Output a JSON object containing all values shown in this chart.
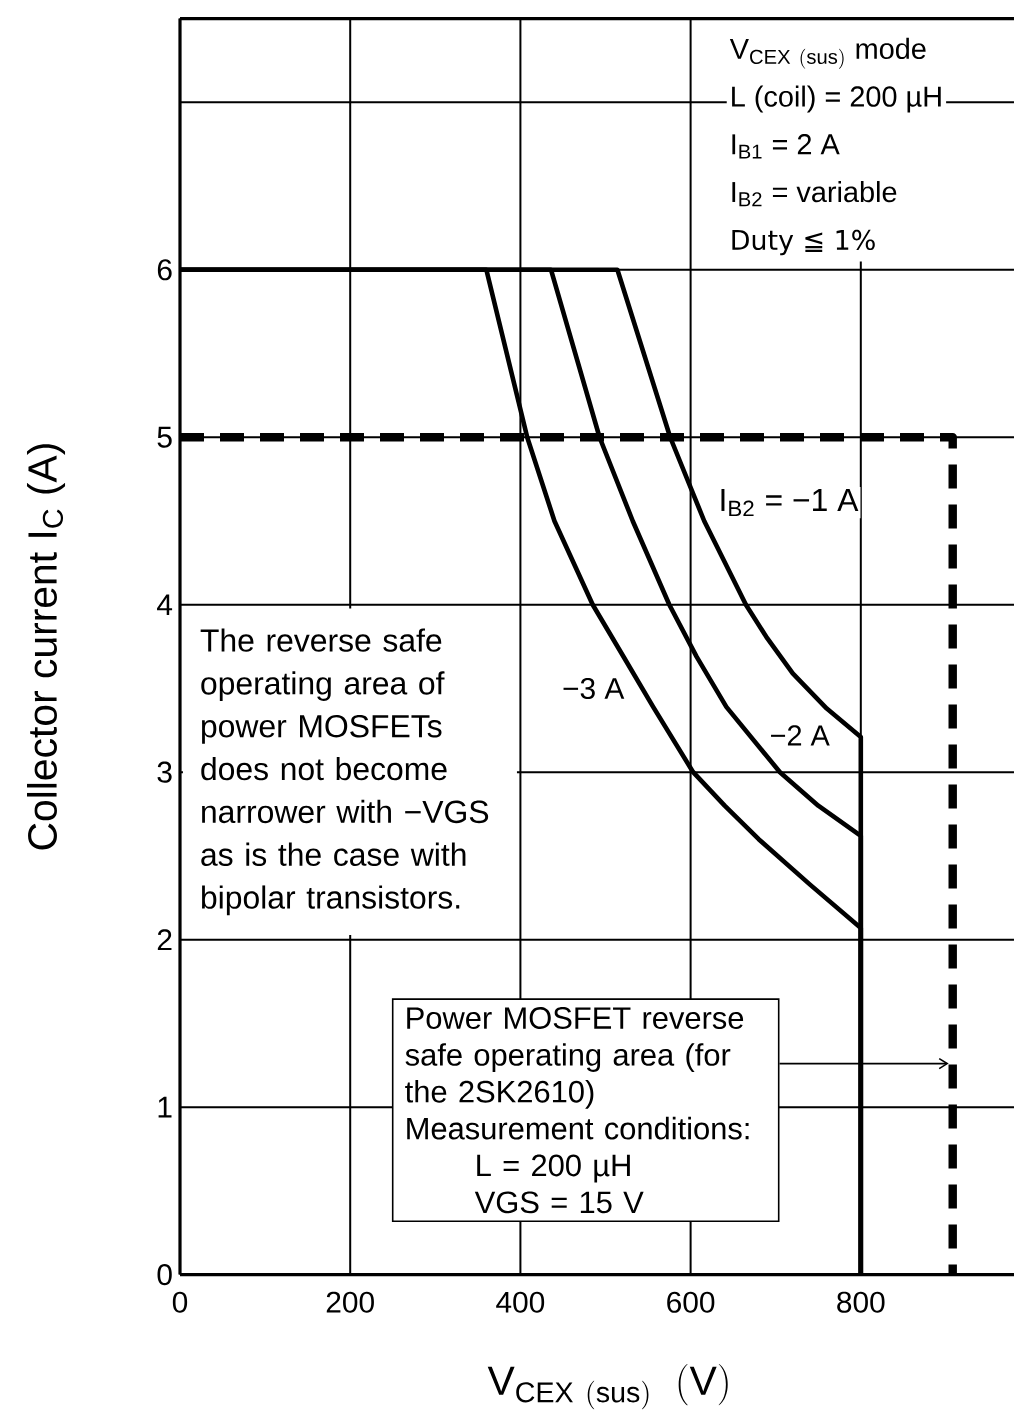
{
  "chart_data": {
    "type": "line",
    "xlabel": "\\mathrm{V}_{\\mathrm{CEX\\ (sus)}}\\ \\ \\mathrm{(V)}",
    "ylabel": "Collector current I$_{C}$ (A)",
    "xlim": [
      0,
      980
    ],
    "ylim": [
      0,
      7.5
    ],
    "xticks": [
      0,
      200,
      400,
      600,
      800
    ],
    "yticks": [
      0,
      1,
      2,
      3,
      4,
      5,
      6,
      {
        "value": 7,
        "label": null
      }
    ],
    "grid": true,
    "legend": false,
    "line_style": "solid",
    "series": [
      {
        "name": "I$_{B2}$ = −1 A",
        "color": "#000000",
        "x": [
          0,
          514,
          576,
          616,
          665,
          690,
          720,
          760,
          800,
          800
        ],
        "values": [
          6,
          6,
          5,
          4.5,
          4,
          3.8,
          3.59,
          3.38,
          3.21,
          0
        ]
      },
      {
        "name": "−2 A",
        "color": "#000000",
        "x": [
          0,
          436,
          493,
          532,
          575,
          607,
          642,
          705,
          750,
          800,
          800
        ],
        "values": [
          6,
          6,
          5,
          4.5,
          4,
          3.69,
          3.39,
          3,
          2.8,
          2.62,
          0
        ]
      },
      {
        "name": "−3 A",
        "color": "#000000",
        "x": [
          0,
          360,
          408,
          440,
          485,
          520,
          556,
          603,
          640,
          680,
          740,
          800,
          800
        ],
        "values": [
          6,
          6,
          5,
          4.5,
          4,
          3.7,
          3.39,
          3,
          2.8,
          2.6,
          2.33,
          2.07,
          0
        ]
      },
      {
        "color": "#000000",
        "line_style": "dashed",
        "x": [
          0,
          908,
          908
        ],
        "values": [
          5,
          5,
          0
        ]
      }
    ],
    "annotations": [
      "\\mathrm{V}_{\\mathrm{CEX\\ (sus)}}\\ \\mathrm{mode}",
      "L (coil) = 200 µH",
      "I$_{B1}$ = 2 A",
      "I$_{B2}$ = variable",
      "Duty ≦ 1%",
      "The reverse safe operating area of power MOSFETs does not become narrower with −VGS as is the case with bipolar transistors.",
      {
        "text": "Power MOSFET reverse safe operating area (for the 2SK2610)",
        "x": 908,
        "y": 1.26
      },
      "Measurement conditions:",
      "L = 200 µH",
      "VGS = 15 V"
    ]
  }
}
